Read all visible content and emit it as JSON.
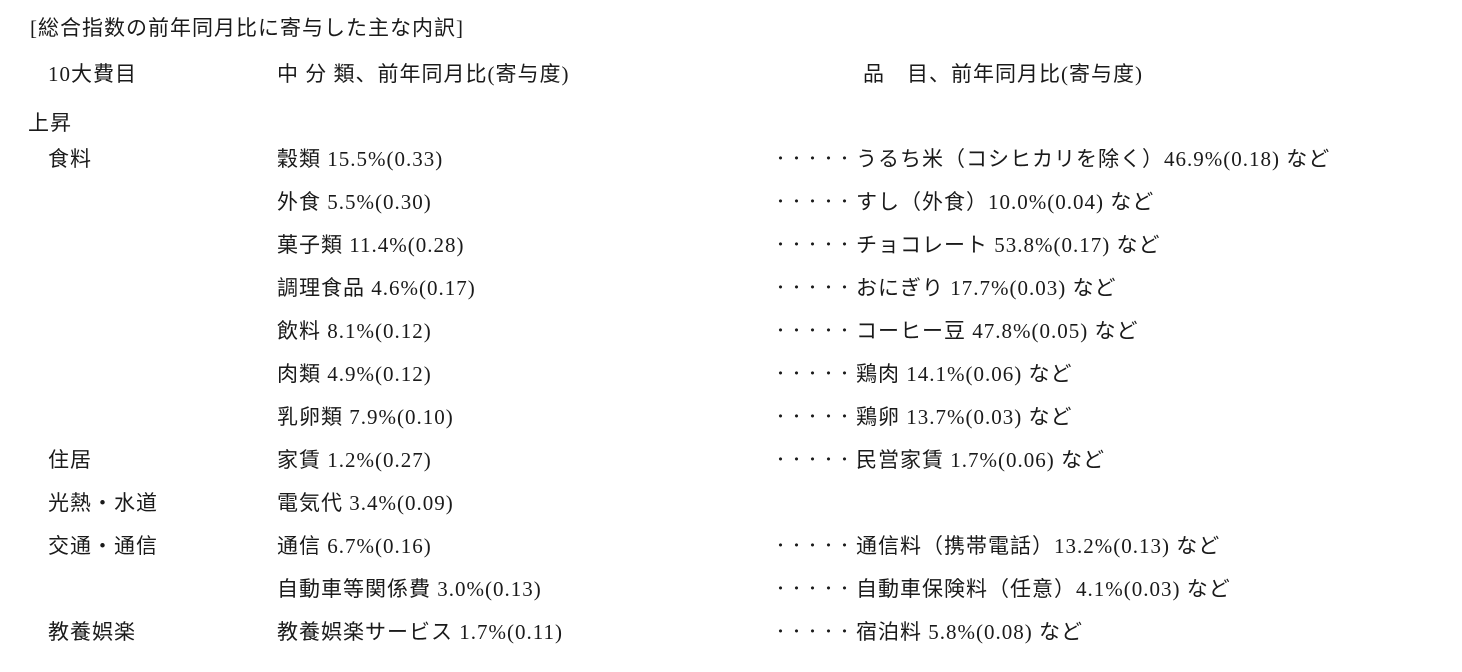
{
  "title": "[総合指数の前年同月比に寄与した主な内訳]",
  "header": {
    "major_groups": "10大費目",
    "subclass": "中 分 類、前年同月比(寄与度)",
    "item": "品　目、前年同月比(寄与度)"
  },
  "section_label": "上昇",
  "rows": [
    {
      "category": "食料",
      "subcategory": "穀類 15.5%(0.33)",
      "dots": "・・・・・",
      "item": "うるち米（コシヒカリを除く）46.9%(0.18) など"
    },
    {
      "category": "",
      "subcategory": "外食 5.5%(0.30)",
      "dots": "・・・・・",
      "item": "すし（外食）10.0%(0.04) など"
    },
    {
      "category": "",
      "subcategory": "菓子類 11.4%(0.28)",
      "dots": "・・・・・",
      "item": "チョコレート 53.8%(0.17) など"
    },
    {
      "category": "",
      "subcategory": "調理食品 4.6%(0.17)",
      "dots": "・・・・・",
      "item": "おにぎり 17.7%(0.03) など"
    },
    {
      "category": "",
      "subcategory": "飲料 8.1%(0.12)",
      "dots": "・・・・・",
      "item": "コーヒー豆 47.8%(0.05) など"
    },
    {
      "category": "",
      "subcategory": "肉類 4.9%(0.12)",
      "dots": "・・・・・",
      "item": "鶏肉 14.1%(0.06) など"
    },
    {
      "category": "",
      "subcategory": "乳卵類 7.9%(0.10)",
      "dots": "・・・・・",
      "item": "鶏卵 13.7%(0.03) など"
    },
    {
      "category": "住居",
      "subcategory": "家賃 1.2%(0.27)",
      "dots": "・・・・・",
      "item": "民営家賃 1.7%(0.06) など"
    },
    {
      "category": "光熱・水道",
      "subcategory": "電気代 3.4%(0.09)",
      "dots": "",
      "item": ""
    },
    {
      "category": "交通・通信",
      "subcategory": "通信 6.7%(0.16)",
      "dots": "・・・・・",
      "item": "通信料（携帯電話）13.2%(0.13) など"
    },
    {
      "category": "",
      "subcategory": "自動車等関係費 3.0%(0.13)",
      "dots": "・・・・・",
      "item": "自動車保険料（任意）4.1%(0.03) など"
    },
    {
      "category": "教養娯楽",
      "subcategory": "教養娯楽サービス 1.7%(0.11)",
      "dots": "・・・・・",
      "item": "宿泊料 5.8%(0.08) など"
    }
  ]
}
